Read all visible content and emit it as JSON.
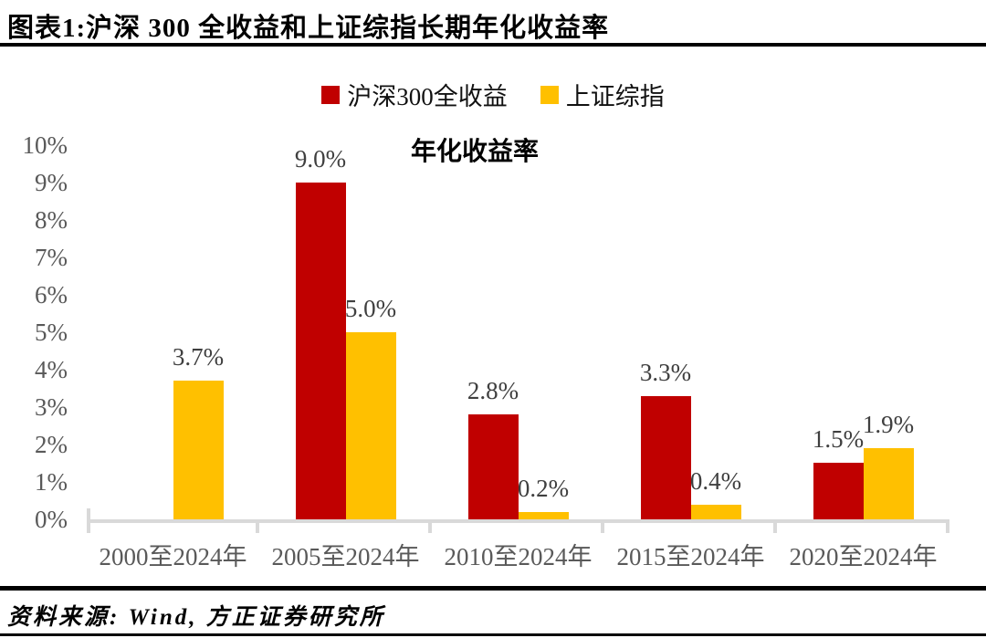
{
  "header": {
    "title": "图表1:沪深 300 全收益和上证综指长期年化收益率"
  },
  "footer": {
    "source": "资料来源: Wind, 方正证券研究所"
  },
  "colors": {
    "series_red": "#C00000",
    "series_yellow": "#FFC000",
    "axis_line": "#D9D9D9",
    "axis_text": "#595959",
    "data_label_text": "#3F3F3F",
    "rule_black": "#000000"
  },
  "chart_data": {
    "type": "bar",
    "title": "年化收益率",
    "categories": [
      "2000至2024年",
      "2005至2024年",
      "2010至2024年",
      "2015至2024年",
      "2020至2024年"
    ],
    "series": [
      {
        "name": "沪深300全收益",
        "color": "#C00000",
        "values": [
          null,
          9.0,
          2.8,
          3.3,
          1.5
        ],
        "labels": [
          "",
          "9.0%",
          "2.8%",
          "3.3%",
          "1.5%"
        ]
      },
      {
        "name": "上证综指",
        "color": "#FFC000",
        "values": [
          3.7,
          5.0,
          0.2,
          0.4,
          1.9
        ],
        "labels": [
          "3.7%",
          "5.0%",
          "0.2%",
          "0.4%",
          "1.9%"
        ]
      }
    ],
    "ylabel": "",
    "xlabel": "",
    "ylim": [
      0,
      10
    ],
    "yticks": [
      "0%",
      "1%",
      "2%",
      "3%",
      "4%",
      "5%",
      "6%",
      "7%",
      "8%",
      "9%",
      "10%"
    ],
    "grid": false,
    "legend_position": "top-center"
  }
}
